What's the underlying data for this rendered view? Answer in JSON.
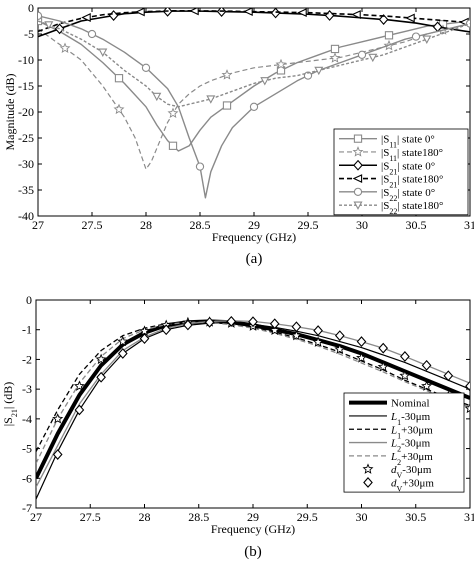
{
  "chart_data": [
    {
      "type": "line",
      "caption": "(a)",
      "xlabel": "Frequency (GHz)",
      "ylabel": "Magnitude (dB)",
      "xlim": [
        27,
        31
      ],
      "ylim": [
        -40,
        0
      ],
      "xticks": [
        27,
        27.5,
        28,
        28.5,
        29,
        29.5,
        30,
        30.5,
        31
      ],
      "xtick_labels": [
        "27",
        "27.5",
        "28",
        "28.5",
        "29",
        "29.5",
        "30",
        "30.5",
        "31"
      ],
      "yticks": [
        0,
        -5,
        -10,
        -15,
        -20,
        -25,
        -30,
        -35,
        -40
      ],
      "ytick_labels": [
        "0",
        "-5",
        "-10",
        "-15",
        "-20",
        "-25",
        "-30",
        "-35",
        "-40"
      ],
      "grid": false,
      "legend_position": "bottom-right",
      "series": [
        {
          "name": "|S11| state 0°",
          "legend": {
            "symbol": "S",
            "sub": "11",
            "rest": "| state 0°"
          },
          "color": "#8a8a8a",
          "dash": "",
          "width": 1.4,
          "marker": "square",
          "x": [
            27,
            27.2,
            27.4,
            27.6,
            27.8,
            28,
            28.1,
            28.2,
            28.3,
            28.4,
            28.5,
            28.6,
            28.8,
            29,
            29.2,
            29.4,
            29.6,
            29.8,
            30,
            30.2,
            30.4,
            30.6,
            30.8,
            31
          ],
          "y": [
            -2.5,
            -4.5,
            -7,
            -10.5,
            -14.5,
            -19,
            -22.5,
            -25.5,
            -27.5,
            -26.5,
            -23.5,
            -21,
            -18,
            -15,
            -12.5,
            -10.5,
            -9,
            -7.5,
            -6.5,
            -5.5,
            -4.5,
            -3.5,
            -3,
            -2.5
          ],
          "marker_x": [
            27,
            27.75,
            28.25,
            28.75,
            29.25,
            29.75,
            30.25,
            30.75
          ]
        },
        {
          "name": "|S11| state180°",
          "legend": {
            "symbol": "S",
            "sub": "11",
            "rest": "| state180°"
          },
          "color": "#8a8a8a",
          "dash": "5 3",
          "width": 1.2,
          "marker": "star",
          "x": [
            27,
            27.2,
            27.4,
            27.6,
            27.8,
            27.9,
            28,
            28.05,
            28.1,
            28.2,
            28.3,
            28.4,
            28.5,
            28.6,
            28.8,
            29,
            29.2,
            29.4,
            29.6,
            29.8,
            30,
            30.2,
            30.4,
            30.6,
            30.8,
            31
          ],
          "y": [
            -4,
            -7,
            -10,
            -15,
            -21,
            -25,
            -31,
            -29.5,
            -27,
            -22,
            -18.5,
            -16.5,
            -15,
            -14,
            -12.5,
            -11.5,
            -11,
            -10.5,
            -10,
            -9.5,
            -8.5,
            -7.5,
            -6.5,
            -5,
            -4,
            -3
          ],
          "marker_x": [
            27.25,
            27.75,
            28.25,
            28.75,
            29.25,
            29.75,
            30.25,
            30.75
          ]
        },
        {
          "name": "|S21| state 0°",
          "legend": {
            "symbol": "S",
            "sub": "21",
            "rest": "| state 0°"
          },
          "color": "#000000",
          "dash": "",
          "width": 1.6,
          "marker": "diamond",
          "x": [
            27,
            27.2,
            27.4,
            27.6,
            27.8,
            28,
            28.25,
            28.5,
            28.75,
            29,
            29.25,
            29.5,
            29.75,
            30,
            30.25,
            30.5,
            30.75,
            31
          ],
          "y": [
            -5.5,
            -4,
            -2.5,
            -1.8,
            -1.1,
            -0.8,
            -0.6,
            -0.6,
            -0.7,
            -0.8,
            -1,
            -1.2,
            -1.5,
            -1.9,
            -2.3,
            -2.9,
            -3.8,
            -4.6
          ],
          "marker_x": [
            27.2,
            27.7,
            28.2,
            28.7,
            29.2,
            29.7,
            30.2,
            30.7
          ]
        },
        {
          "name": "|S21| state180°",
          "legend": {
            "symbol": "S",
            "sub": "21",
            "rest": "| state180°"
          },
          "color": "#000000",
          "dash": "5 3",
          "width": 1.6,
          "marker": "triangle-left",
          "x": [
            27,
            27.2,
            27.4,
            27.6,
            27.8,
            28,
            28.25,
            28.5,
            28.75,
            29,
            29.25,
            29.5,
            29.75,
            30,
            30.25,
            30.5,
            30.75,
            31
          ],
          "y": [
            -4.5,
            -3,
            -2,
            -1.3,
            -0.9,
            -0.7,
            -0.55,
            -0.55,
            -0.6,
            -0.7,
            -0.8,
            -0.9,
            -1.1,
            -1.3,
            -1.6,
            -2,
            -2.4,
            -2.8
          ],
          "marker_x": [
            27.45,
            27.95,
            28.45,
            28.95,
            29.45,
            29.95,
            30.45,
            30.95
          ]
        },
        {
          "name": "|S22| state 0°",
          "legend": {
            "symbol": "S",
            "sub": "22",
            "rest": "| state 0°"
          },
          "color": "#8a8a8a",
          "dash": "",
          "width": 1.4,
          "marker": "circle",
          "x": [
            27,
            27.2,
            27.4,
            27.6,
            27.8,
            28,
            28.2,
            28.3,
            28.4,
            28.5,
            28.55,
            28.6,
            28.7,
            28.8,
            29,
            29.2,
            29.4,
            29.6,
            29.8,
            30,
            30.2,
            30.4,
            30.6,
            30.8,
            31
          ],
          "y": [
            -1.5,
            -2.5,
            -4,
            -6,
            -8.5,
            -11.5,
            -15.5,
            -19,
            -25,
            -30.5,
            -36.5,
            -31.5,
            -26.5,
            -23,
            -19,
            -16.5,
            -14,
            -12,
            -10.5,
            -9,
            -7.5,
            -6,
            -5,
            -4,
            -3
          ],
          "marker_x": [
            27,
            27.5,
            28,
            28.5,
            29,
            29.5,
            30,
            30.5,
            31
          ]
        },
        {
          "name": "|S22| state180°",
          "legend": {
            "symbol": "S",
            "sub": "22",
            "rest": "| state180°"
          },
          "color": "#8a8a8a",
          "dash": "3 2",
          "width": 1.4,
          "marker": "triangle-down",
          "x": [
            27,
            27.2,
            27.4,
            27.6,
            27.8,
            28,
            28.1,
            28.2,
            28.3,
            28.4,
            28.6,
            28.8,
            29,
            29.2,
            29.4,
            29.6,
            29.8,
            30,
            30.2,
            30.4,
            30.6,
            30.8,
            31
          ],
          "y": [
            -2.5,
            -4,
            -6,
            -8.5,
            -12,
            -15,
            -17,
            -18.5,
            -19,
            -18.5,
            -17.5,
            -16,
            -14.5,
            -13.5,
            -13,
            -12,
            -11,
            -10,
            -9,
            -7.5,
            -6,
            -4.5,
            -3
          ],
          "marker_x": [
            27.1,
            27.6,
            28.1,
            28.6,
            29.1,
            29.6,
            30.1,
            30.6
          ]
        }
      ]
    },
    {
      "type": "line",
      "caption": "(b)",
      "xlabel": "Frequency (GHz)",
      "ylabel": "|S21| (dB)",
      "xlim": [
        27,
        31
      ],
      "ylim": [
        -7,
        0
      ],
      "xticks": [
        27,
        27.5,
        28,
        28.5,
        29,
        29.5,
        30,
        30.5,
        31
      ],
      "xtick_labels": [
        "27",
        "27.5",
        "28",
        "28.5",
        "29",
        "29.5",
        "30",
        "30.5",
        "31"
      ],
      "yticks": [
        0,
        -1,
        -2,
        -3,
        -4,
        -5,
        -6,
        -7
      ],
      "ytick_labels": [
        "0",
        "-1",
        "-2",
        "-3",
        "-4",
        "-5",
        "-6",
        "-7"
      ],
      "grid": false,
      "legend_position": "bottom-right",
      "series": [
        {
          "name": "Nominal",
          "legend": {
            "text": "Nominal"
          },
          "color": "#000000",
          "dash": "",
          "width": 4,
          "marker": "none",
          "x": [
            27,
            27.2,
            27.4,
            27.6,
            27.8,
            28,
            28.2,
            28.4,
            28.6,
            28.8,
            29,
            29.2,
            29.4,
            29.6,
            29.8,
            30,
            30.2,
            30.4,
            30.6,
            30.8,
            31
          ],
          "y": [
            -6,
            -4.5,
            -3.2,
            -2.2,
            -1.5,
            -1.1,
            -0.85,
            -0.75,
            -0.72,
            -0.75,
            -0.85,
            -1,
            -1.15,
            -1.35,
            -1.55,
            -1.8,
            -2.1,
            -2.4,
            -2.7,
            -3,
            -3.3
          ]
        },
        {
          "name": "L1-30μm",
          "legend": {
            "symbol": "L",
            "sub": "1",
            "rest": "-30μm"
          },
          "color": "#000000",
          "dash": "",
          "width": 1.2,
          "marker": "none",
          "x": [
            27,
            27.2,
            27.4,
            27.6,
            27.8,
            28,
            28.2,
            28.4,
            28.6,
            28.8,
            29,
            29.2,
            29.4,
            29.6,
            29.8,
            30,
            30.2,
            30.4,
            30.6,
            30.8,
            31
          ],
          "y": [
            -6.7,
            -5.1,
            -3.7,
            -2.6,
            -1.8,
            -1.3,
            -1,
            -0.85,
            -0.78,
            -0.78,
            -0.82,
            -0.92,
            -1.05,
            -1.2,
            -1.4,
            -1.6,
            -1.85,
            -2.1,
            -2.4,
            -2.7,
            -3
          ]
        },
        {
          "name": "L1+30μm",
          "legend": {
            "symbol": "L",
            "sub": "1",
            "rest": "+30μm"
          },
          "color": "#000000",
          "dash": "5 3",
          "width": 1.3,
          "marker": "none",
          "x": [
            27,
            27.2,
            27.4,
            27.6,
            27.8,
            28,
            28.2,
            28.4,
            28.6,
            28.8,
            29,
            29.2,
            29.4,
            29.6,
            29.8,
            30,
            30.2,
            30.4,
            30.6,
            30.8,
            31
          ],
          "y": [
            -5.1,
            -3.7,
            -2.5,
            -1.7,
            -1.2,
            -0.95,
            -0.8,
            -0.75,
            -0.75,
            -0.8,
            -0.92,
            -1.08,
            -1.27,
            -1.5,
            -1.75,
            -2.05,
            -2.35,
            -2.7,
            -3,
            -3.3,
            -3.55
          ]
        },
        {
          "name": "L2-30μm",
          "legend": {
            "symbol": "L",
            "sub": "2",
            "rest": "-30μm"
          },
          "color": "#8a8a8a",
          "dash": "",
          "width": 1.3,
          "marker": "none",
          "x": [
            27,
            27.2,
            27.4,
            27.6,
            27.8,
            28,
            28.2,
            28.4,
            28.6,
            28.8,
            29,
            29.2,
            29.4,
            29.6,
            29.8,
            30,
            30.2,
            30.4,
            30.6,
            30.8,
            31
          ],
          "y": [
            -6.3,
            -4.9,
            -3.5,
            -2.5,
            -1.7,
            -1.25,
            -0.95,
            -0.8,
            -0.72,
            -0.7,
            -0.72,
            -0.8,
            -0.9,
            -1.02,
            -1.2,
            -1.4,
            -1.62,
            -1.9,
            -2.2,
            -2.5,
            -2.8
          ]
        },
        {
          "name": "L2+30μm",
          "legend": {
            "symbol": "L",
            "sub": "2",
            "rest": "+30μm"
          },
          "color": "#8a8a8a",
          "dash": "5 3",
          "width": 1.3,
          "marker": "none",
          "x": [
            27,
            27.2,
            27.4,
            27.6,
            27.8,
            28,
            28.2,
            28.4,
            28.6,
            28.8,
            29,
            29.2,
            29.4,
            29.6,
            29.8,
            30,
            30.2,
            30.4,
            30.6,
            30.8,
            31
          ],
          "y": [
            -5.5,
            -4,
            -2.8,
            -1.9,
            -1.3,
            -1,
            -0.82,
            -0.75,
            -0.76,
            -0.83,
            -0.95,
            -1.12,
            -1.32,
            -1.55,
            -1.82,
            -2.12,
            -2.42,
            -2.75,
            -3.05,
            -3.35,
            -3.6
          ]
        },
        {
          "name": "dV-30μm",
          "legend": {
            "symbol": "d",
            "sub": "V",
            "rest": "-30μm"
          },
          "color": "#000000",
          "dash": "",
          "width": 0,
          "marker": "star",
          "x": [
            27.2,
            27.4,
            27.6,
            27.8,
            28,
            28.2,
            28.4,
            28.6,
            28.8,
            29,
            29.2,
            29.4,
            29.6,
            29.8,
            30,
            30.2,
            30.4,
            30.6,
            30.8,
            31
          ],
          "y": [
            -4,
            -2.9,
            -2,
            -1.4,
            -1.05,
            -0.85,
            -0.76,
            -0.74,
            -0.78,
            -0.88,
            -1.02,
            -1.2,
            -1.42,
            -1.66,
            -1.95,
            -2.25,
            -2.55,
            -2.9,
            -3.25,
            -3.65
          ]
        },
        {
          "name": "dV+30μm",
          "legend": {
            "symbol": "d",
            "sub": "V",
            "rest": "+30μm"
          },
          "color": "#000000",
          "dash": "",
          "width": 0,
          "marker": "diamond",
          "x": [
            27.2,
            27.4,
            27.6,
            27.8,
            28,
            28.2,
            28.4,
            28.6,
            28.8,
            29,
            29.2,
            29.4,
            29.6,
            29.8,
            30,
            30.2,
            30.4,
            30.6,
            30.8,
            31
          ],
          "y": [
            -5.2,
            -3.7,
            -2.6,
            -1.8,
            -1.3,
            -1,
            -0.84,
            -0.75,
            -0.72,
            -0.73,
            -0.8,
            -0.9,
            -1.03,
            -1.2,
            -1.4,
            -1.62,
            -1.9,
            -2.2,
            -2.55,
            -2.9
          ]
        }
      ]
    }
  ]
}
